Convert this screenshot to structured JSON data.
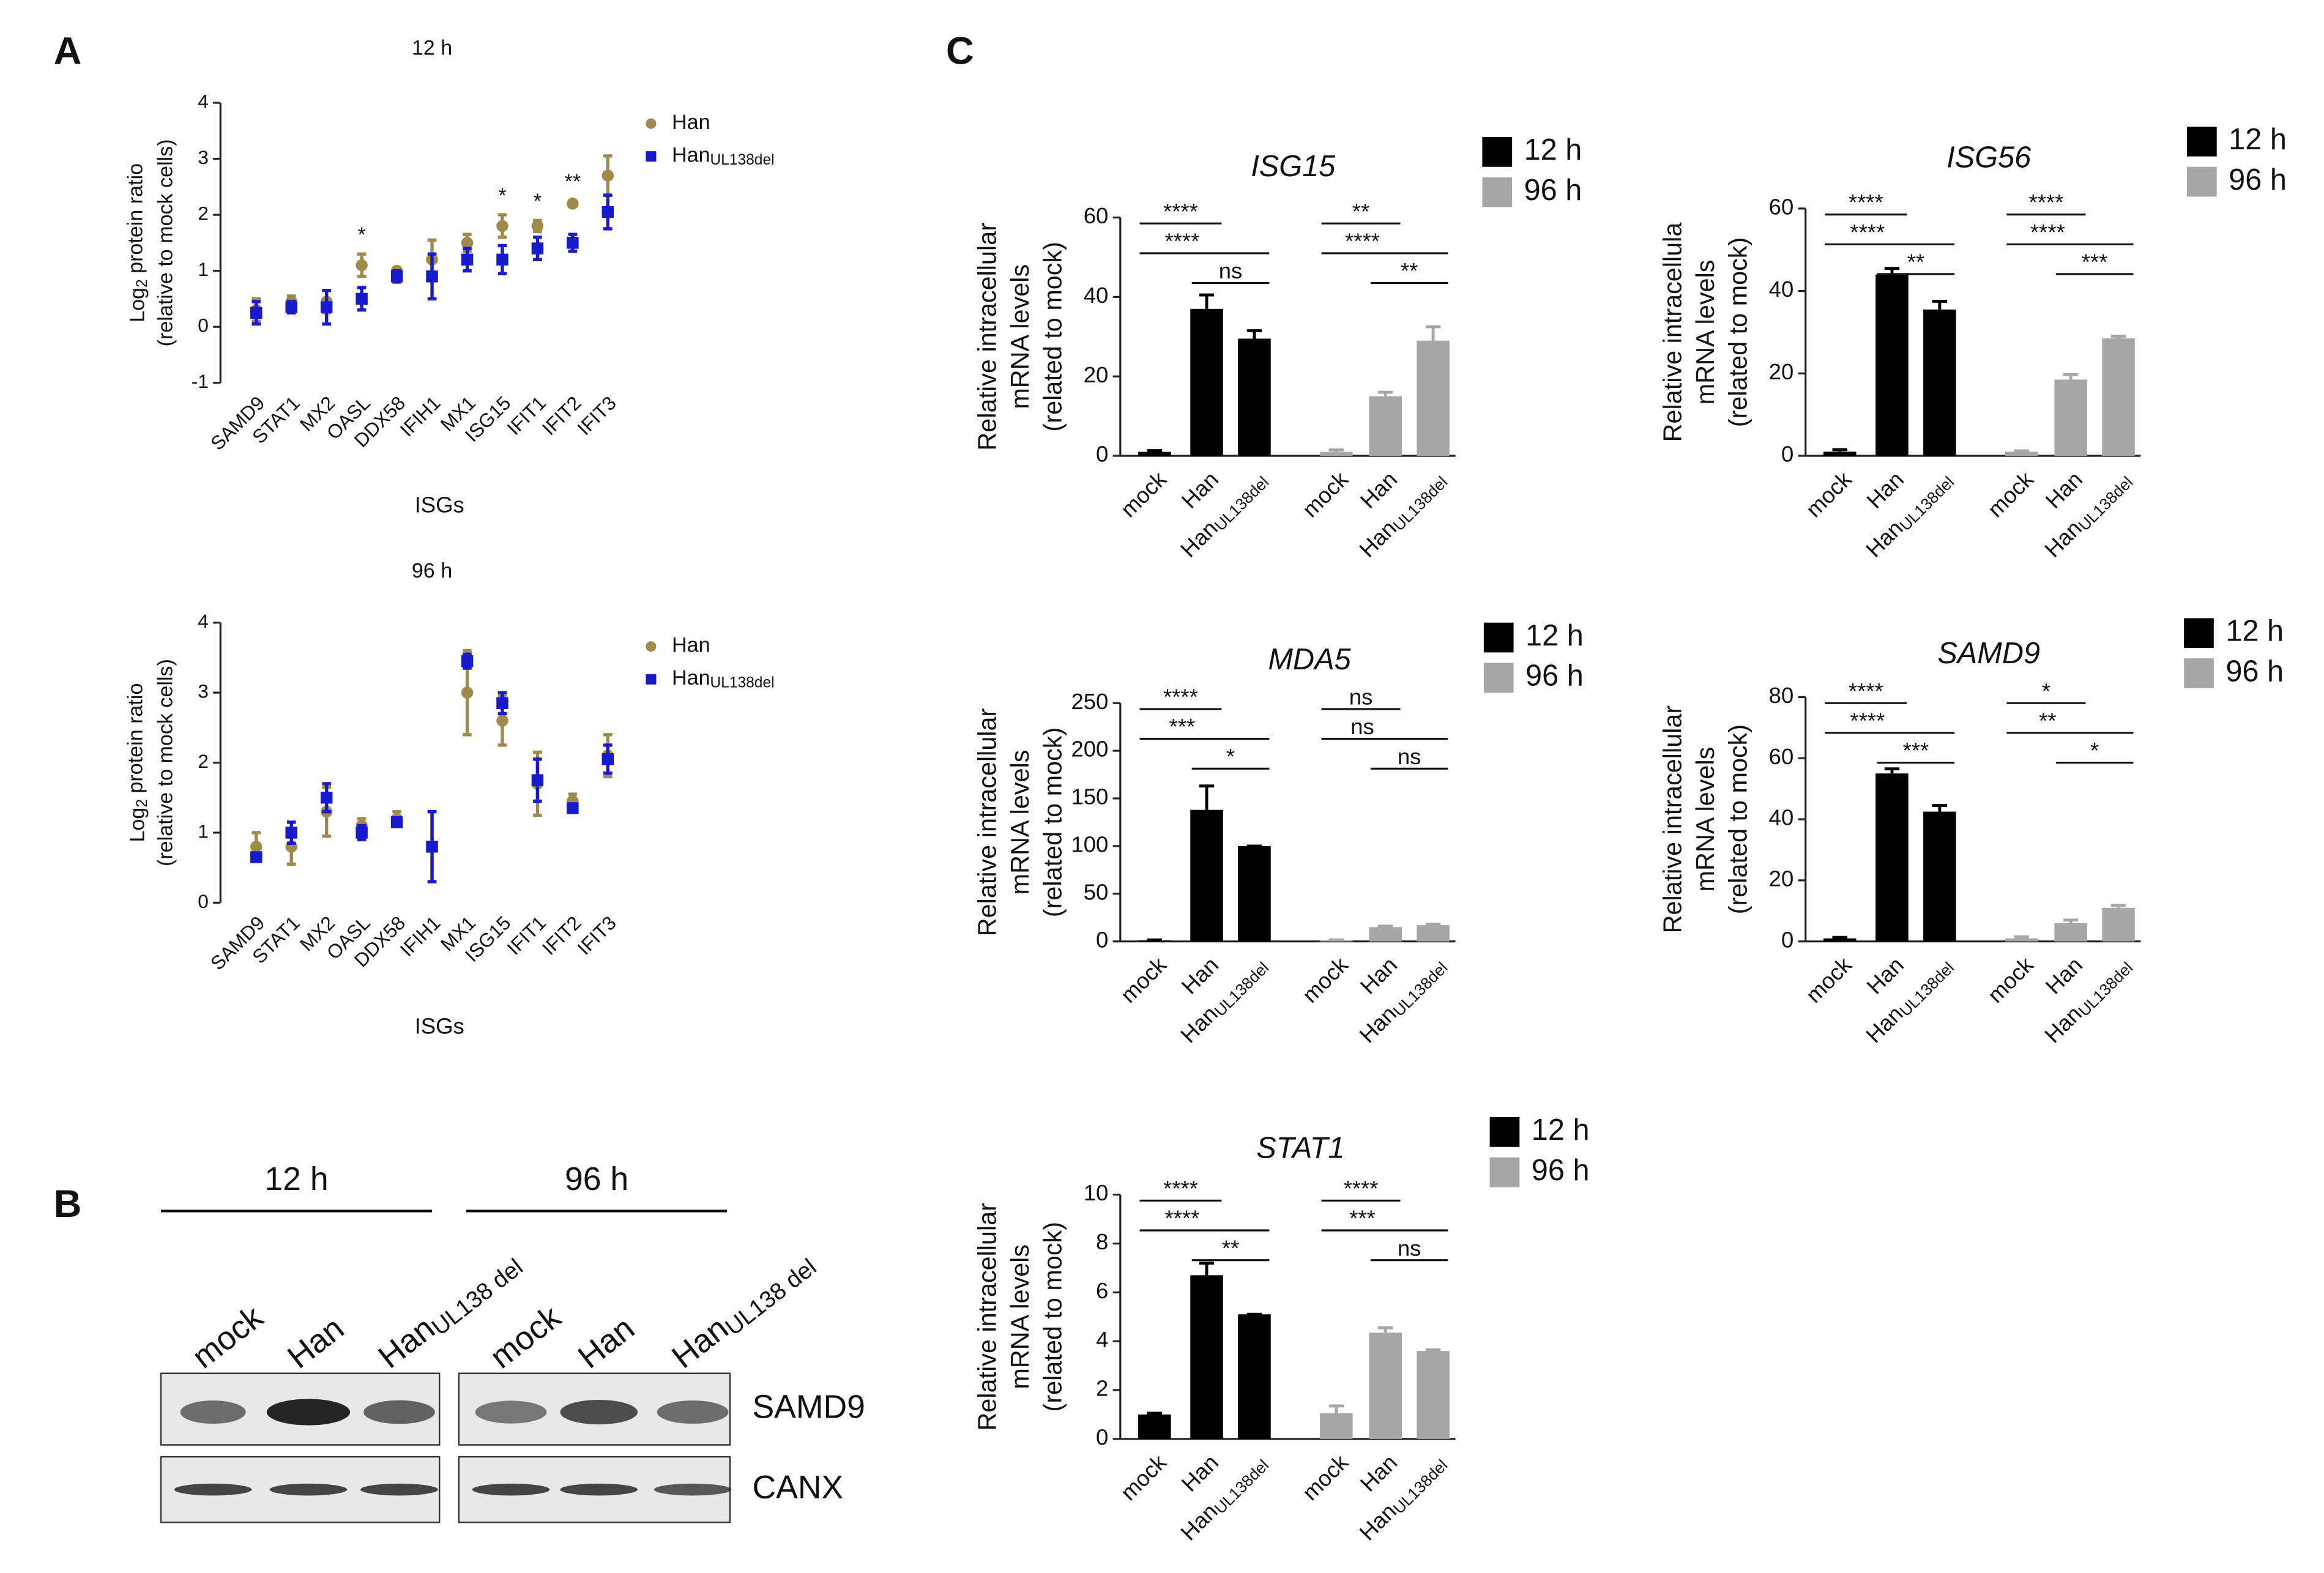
{
  "panels": [
    "A",
    "B",
    "C"
  ],
  "chart_data": [
    {
      "type": "scatter",
      "title": "12 h",
      "xlabel": "ISGs",
      "ylabel": [
        {
          "main": "Log",
          "sub": "2",
          "rest": " protein ratio"
        },
        "(relative to mock cells)"
      ],
      "categories": [
        "SAMD9",
        "STAT1",
        "MX2",
        "OASL",
        "DDX58",
        "IFIH1",
        "MX1",
        "ISG15",
        "IFIT1",
        "IFIT2",
        "IFIT3"
      ],
      "series": [
        {
          "name": "Han",
          "color": "#a08a4b",
          "marker": "circle",
          "values": [
            0.3,
            0.45,
            0.45,
            1.1,
            1.0,
            1.2,
            1.5,
            1.8,
            1.8,
            2.2,
            2.7
          ],
          "errors": [
            0.2,
            0.1,
            0.2,
            0.2,
            0.05,
            0.35,
            0.15,
            0.2,
            0.1,
            0.05,
            0.35
          ]
        },
        {
          "name": {
            "main": "Han",
            "sub": "UL138del"
          },
          "color": "#1a1acd",
          "marker": "square",
          "values": [
            0.25,
            0.35,
            0.35,
            0.5,
            0.9,
            0.9,
            1.2,
            1.2,
            1.4,
            1.5,
            2.05
          ],
          "errors": [
            0.2,
            0.1,
            0.3,
            0.2,
            0.1,
            0.4,
            0.2,
            0.25,
            0.2,
            0.15,
            0.3
          ]
        }
      ],
      "annotations": [
        {
          "index": 3,
          "text": "*"
        },
        {
          "index": 7,
          "text": "*"
        },
        {
          "index": 8,
          "text": "*"
        },
        {
          "index": 9,
          "text": "**"
        }
      ],
      "ylim": [
        -1,
        4
      ],
      "yticks": [
        -1,
        0,
        1,
        2,
        3,
        4
      ]
    },
    {
      "type": "scatter",
      "title": "96 h",
      "xlabel": "ISGs",
      "ylabel": [
        {
          "main": "Log",
          "sub": "2",
          "rest": " protein ratio"
        },
        "(relative to mock cells)"
      ],
      "categories": [
        "SAMD9",
        "STAT1",
        "MX2",
        "OASL",
        "DDX58",
        "IFIH1",
        "MX1",
        "ISG15",
        "IFIT1",
        "IFIT2",
        "IFIT3"
      ],
      "series": [
        {
          "name": "Han",
          "color": "#a08a4b",
          "marker": "circle",
          "values": [
            0.8,
            0.8,
            1.3,
            1.1,
            1.2,
            0.8,
            3.0,
            2.6,
            1.7,
            1.45,
            2.1
          ],
          "errors": [
            0.2,
            0.25,
            0.35,
            0.1,
            0.1,
            0.5,
            0.6,
            0.35,
            0.45,
            0.1,
            0.3
          ]
        },
        {
          "name": {
            "main": "Han",
            "sub": "UL138del"
          },
          "color": "#1a1acd",
          "marker": "square",
          "values": [
            0.65,
            1.0,
            1.5,
            1.0,
            1.15,
            0.8,
            3.45,
            2.85,
            1.75,
            1.35,
            2.05
          ],
          "errors": [
            0.05,
            0.15,
            0.2,
            0.1,
            0.05,
            0.5,
            0.1,
            0.15,
            0.3,
            0.05,
            0.2
          ]
        }
      ],
      "annotations": [],
      "ylim": [
        0,
        4
      ],
      "yticks": [
        0,
        1,
        2,
        3,
        4
      ]
    },
    {
      "type": "bar",
      "title": "ISG15",
      "ylabel": [
        "Relative intracellular",
        "mRNA levels",
        "(related to mock)"
      ],
      "categories": [
        "mock",
        "Han",
        {
          "main": "Han",
          "sub": "UL138del"
        },
        "mock",
        "Han",
        {
          "main": "Han",
          "sub": "UL138del"
        }
      ],
      "series": [
        {
          "name": "12 h",
          "color": "#000000",
          "values": [
            1,
            37,
            29.5,
            null,
            null,
            null
          ],
          "errors": [
            0.3,
            3.5,
            2,
            null,
            null,
            null
          ]
        },
        {
          "name": "96 h",
          "color": "#a6a6a6",
          "values": [
            null,
            null,
            null,
            1,
            15,
            29
          ],
          "errors": [
            null,
            null,
            null,
            0.5,
            1,
            3.5
          ]
        }
      ],
      "significance": [
        {
          "from": 0,
          "to": 1,
          "label": "****"
        },
        {
          "from": 0,
          "to": 2,
          "label": "****"
        },
        {
          "from": 1,
          "to": 2,
          "label": "ns"
        },
        {
          "from": 3,
          "to": 4,
          "label": "**"
        },
        {
          "from": 3,
          "to": 5,
          "label": "****"
        },
        {
          "from": 4,
          "to": 5,
          "label": "**"
        }
      ],
      "ylim": [
        0,
        60
      ],
      "yticks": [
        0,
        20,
        40,
        60
      ]
    },
    {
      "type": "bar",
      "title": "ISG56",
      "ylabel": [
        "Relative intracellula",
        "mRNA levels",
        "(related to mock)"
      ],
      "categories": [
        "mock",
        "Han",
        {
          "main": "Han",
          "sub": "UL138del"
        },
        "mock",
        "Han",
        {
          "main": "Han",
          "sub": "UL138del"
        }
      ],
      "series": [
        {
          "name": "12 h",
          "color": "#000000",
          "values": [
            1,
            44,
            35.5,
            null,
            null,
            null
          ],
          "errors": [
            0.5,
            1.5,
            2,
            null,
            null,
            null
          ]
        },
        {
          "name": "96 h",
          "color": "#a6a6a6",
          "values": [
            null,
            null,
            null,
            1,
            18.5,
            28.5
          ],
          "errors": [
            null,
            null,
            null,
            0.2,
            1.2,
            0.5
          ]
        }
      ],
      "significance": [
        {
          "from": 0,
          "to": 1,
          "label": "****"
        },
        {
          "from": 0,
          "to": 2,
          "label": "****"
        },
        {
          "from": 1,
          "to": 2,
          "label": "**"
        },
        {
          "from": 3,
          "to": 4,
          "label": "****"
        },
        {
          "from": 3,
          "to": 5,
          "label": "****"
        },
        {
          "from": 4,
          "to": 5,
          "label": "***"
        }
      ],
      "ylim": [
        0,
        60
      ],
      "yticks": [
        0,
        20,
        40,
        60
      ]
    },
    {
      "type": "bar",
      "title": "MDA5",
      "ylabel": [
        "Relative intracellular",
        "mRNA levels",
        "(related to mock)"
      ],
      "categories": [
        "mock",
        "Han",
        {
          "main": "Han",
          "sub": "UL138del"
        },
        "mock",
        "Han",
        {
          "main": "Han",
          "sub": "UL138del"
        }
      ],
      "series": [
        {
          "name": "12 h",
          "color": "#000000",
          "values": [
            1,
            138,
            100,
            null,
            null,
            null
          ],
          "errors": [
            0.5,
            25,
            0,
            null,
            null,
            null
          ]
        },
        {
          "name": "96 h",
          "color": "#a6a6a6",
          "values": [
            null,
            null,
            null,
            1,
            15,
            17
          ],
          "errors": [
            null,
            null,
            null,
            0.5,
            1,
            1
          ]
        }
      ],
      "significance": [
        {
          "from": 0,
          "to": 1,
          "label": "****"
        },
        {
          "from": 0,
          "to": 2,
          "label": "***"
        },
        {
          "from": 1,
          "to": 2,
          "label": "*"
        },
        {
          "from": 3,
          "to": 4,
          "label": "ns"
        },
        {
          "from": 3,
          "to": 5,
          "label": "ns"
        },
        {
          "from": 4,
          "to": 5,
          "label": "ns"
        }
      ],
      "ylim": [
        0,
        250
      ],
      "yticks": [
        0,
        50,
        100,
        150,
        200,
        250
      ]
    },
    {
      "type": "bar",
      "title": "SAMD9",
      "ylabel": [
        "Relative intracellular",
        "mRNA levels",
        "(related to mock)"
      ],
      "categories": [
        "mock",
        "Han",
        {
          "main": "Han",
          "sub": "UL138del"
        },
        "mock",
        "Han",
        {
          "main": "Han",
          "sub": "UL138del"
        }
      ],
      "series": [
        {
          "name": "12 h",
          "color": "#000000",
          "values": [
            1,
            55,
            42.5,
            null,
            null,
            null
          ],
          "errors": [
            0.3,
            1.5,
            2,
            null,
            null,
            null
          ]
        },
        {
          "name": "96 h",
          "color": "#a6a6a6",
          "values": [
            null,
            null,
            null,
            1,
            6,
            11
          ],
          "errors": [
            null,
            null,
            null,
            0.5,
            1,
            0.8
          ]
        }
      ],
      "significance": [
        {
          "from": 0,
          "to": 1,
          "label": "****"
        },
        {
          "from": 0,
          "to": 2,
          "label": "****"
        },
        {
          "from": 1,
          "to": 2,
          "label": "***"
        },
        {
          "from": 3,
          "to": 4,
          "label": "*"
        },
        {
          "from": 3,
          "to": 5,
          "label": "**"
        },
        {
          "from": 4,
          "to": 5,
          "label": "*"
        }
      ],
      "ylim": [
        0,
        80
      ],
      "yticks": [
        0,
        20,
        40,
        60,
        80
      ]
    },
    {
      "type": "bar",
      "title": "STAT1",
      "ylabel": [
        "Relative intracellular",
        "mRNA levels",
        "(related to mock)"
      ],
      "categories": [
        "mock",
        "Han",
        {
          "main": "Han",
          "sub": "UL138del"
        },
        "mock",
        "Han",
        {
          "main": "Han",
          "sub": "UL138del"
        }
      ],
      "series": [
        {
          "name": "12 h",
          "color": "#000000",
          "values": [
            1,
            6.7,
            5.1,
            null,
            null,
            null
          ],
          "errors": [
            0.05,
            0.5,
            0,
            null,
            null,
            null
          ]
        },
        {
          "name": "96 h",
          "color": "#a6a6a6",
          "values": [
            null,
            null,
            null,
            1.05,
            4.35,
            3.6
          ],
          "errors": [
            null,
            null,
            null,
            0.3,
            0.2,
            0.05
          ]
        }
      ],
      "significance": [
        {
          "from": 0,
          "to": 1,
          "label": "****"
        },
        {
          "from": 0,
          "to": 2,
          "label": "****"
        },
        {
          "from": 1,
          "to": 2,
          "label": "**"
        },
        {
          "from": 3,
          "to": 4,
          "label": "****"
        },
        {
          "from": 3,
          "to": 5,
          "label": "***"
        },
        {
          "from": 4,
          "to": 5,
          "label": "ns"
        }
      ],
      "ylim": [
        0,
        10
      ],
      "yticks": [
        0,
        2,
        4,
        6,
        8,
        10
      ]
    }
  ],
  "blot": {
    "groups": [
      "12 h",
      "96 h"
    ],
    "lanes": [
      "mock",
      "Han",
      {
        "main": "Han",
        "sub": "UL138 del"
      },
      "mock",
      "Han",
      {
        "main": "Han",
        "sub": "UL138 del"
      }
    ],
    "rows": [
      "SAMD9",
      "CANX"
    ]
  }
}
